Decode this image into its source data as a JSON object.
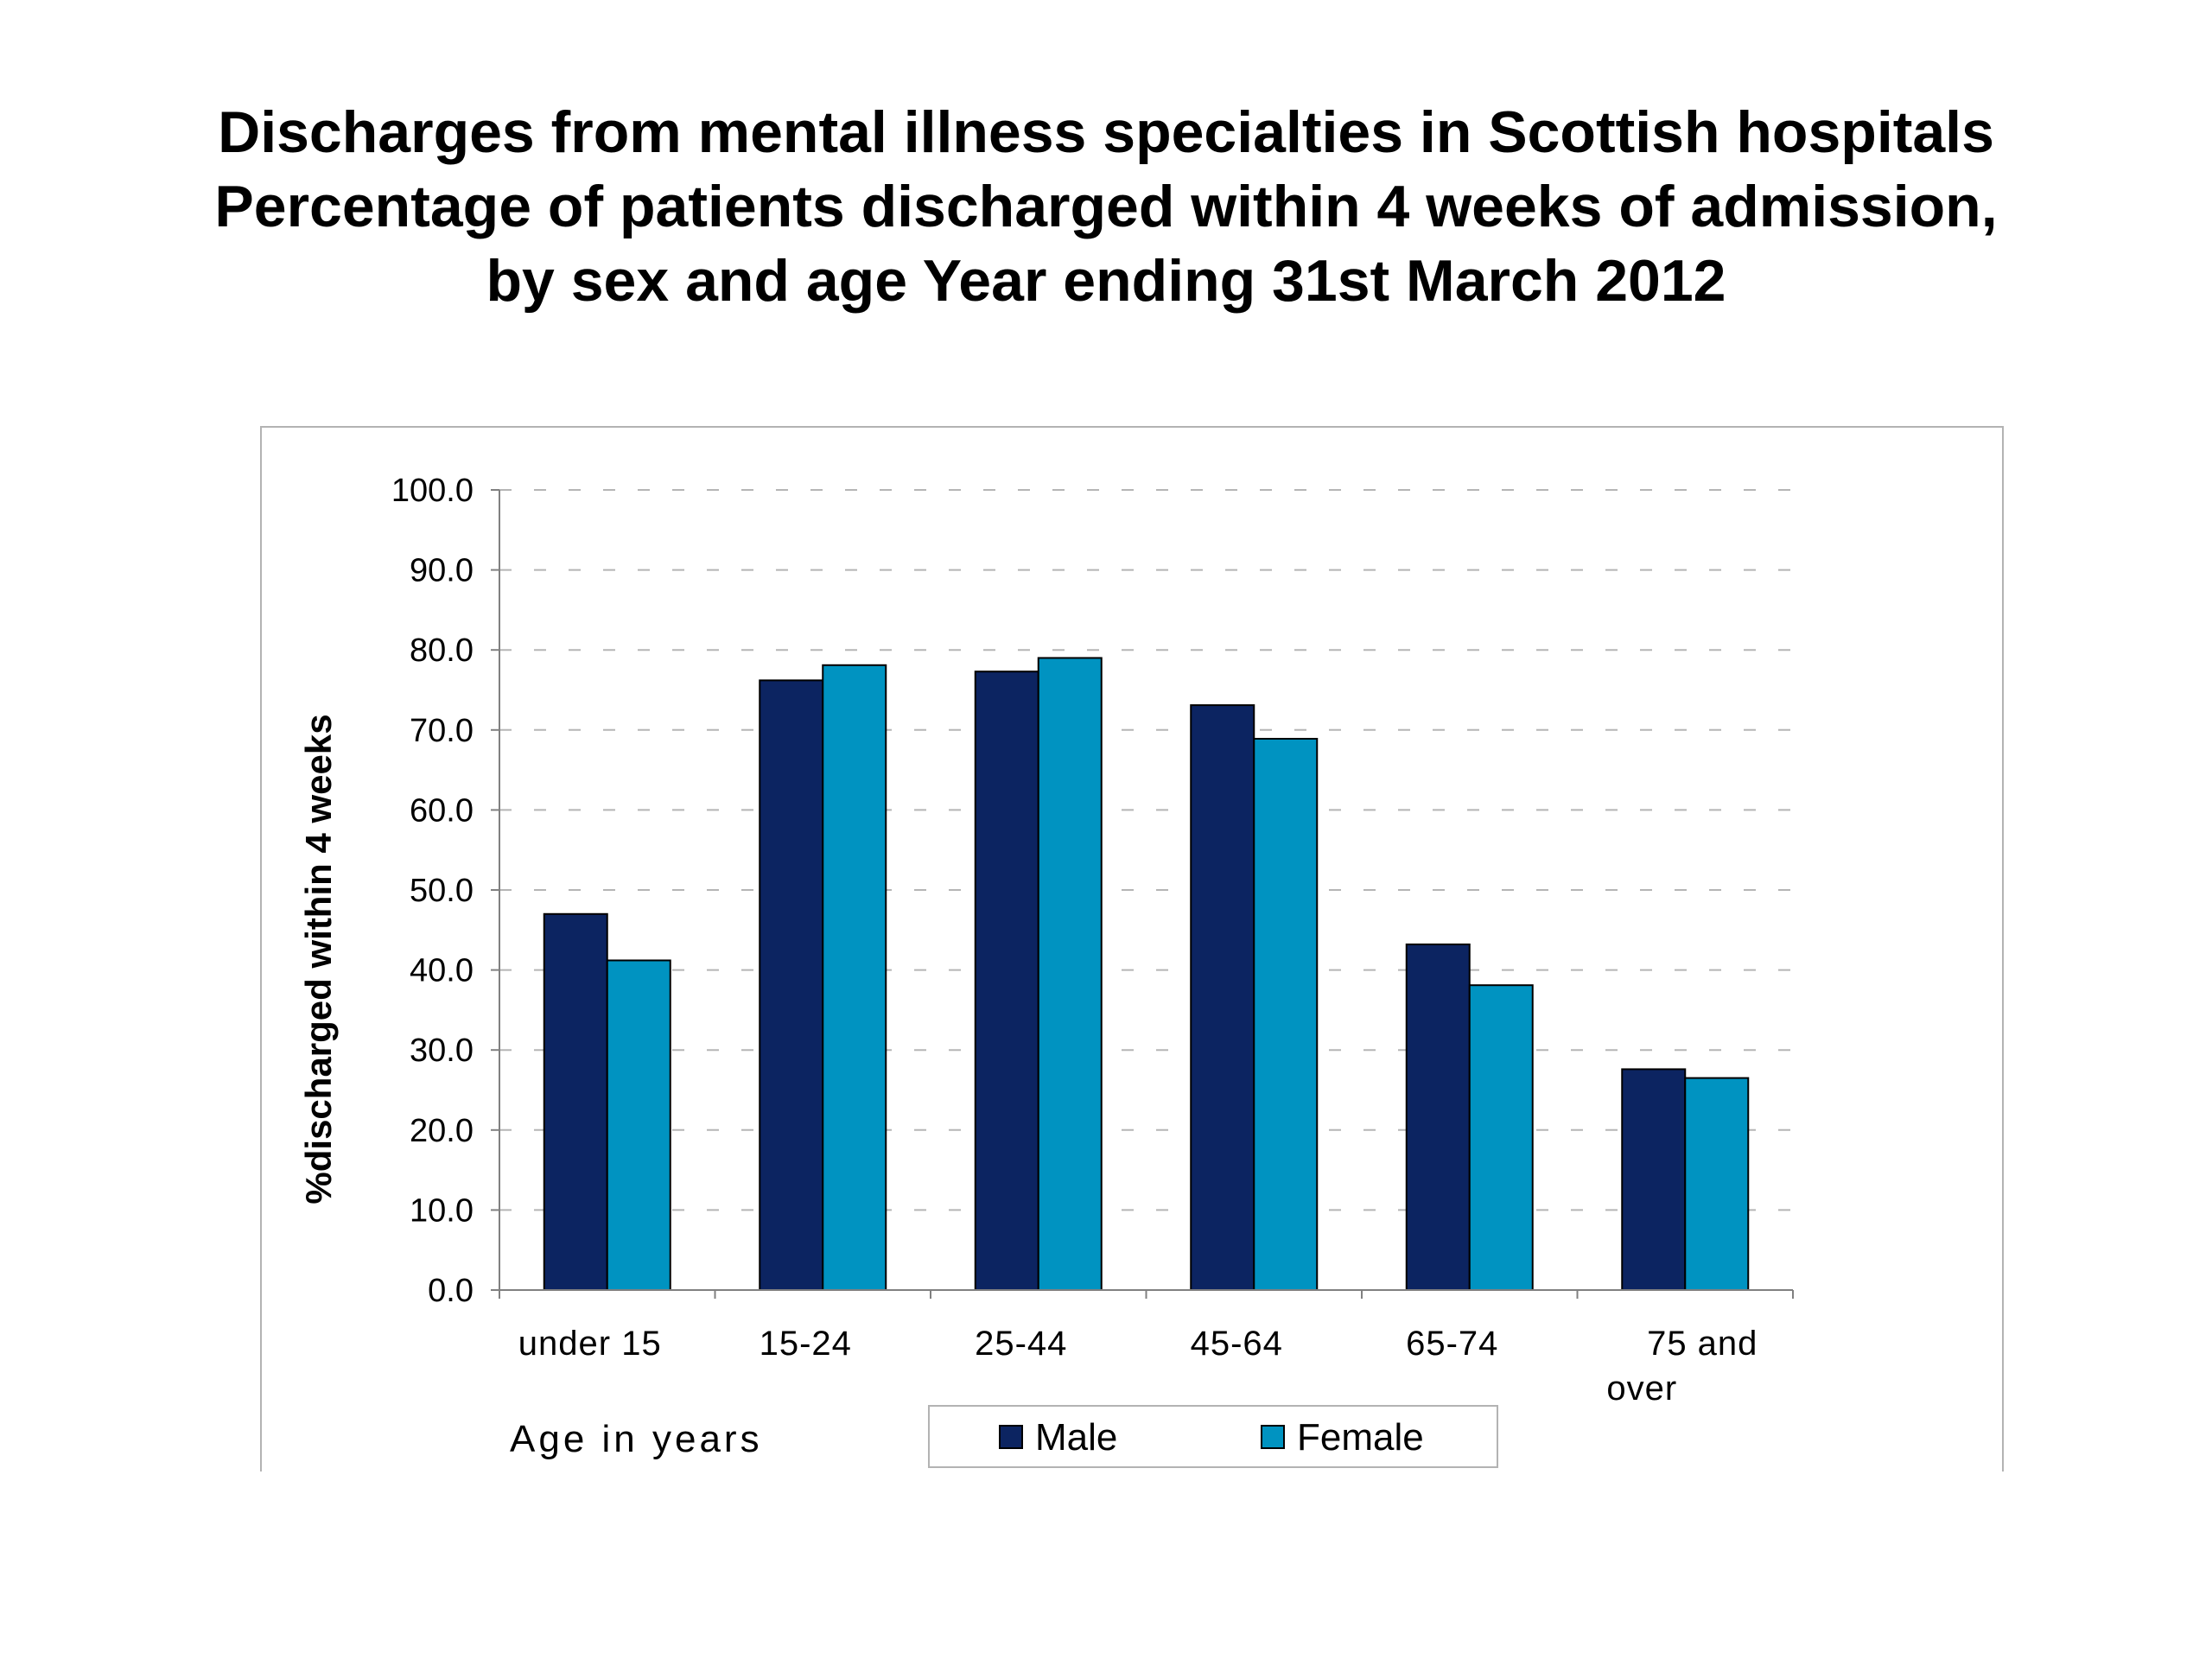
{
  "title_lines": [
    "Discharges from mental illness specialties in Scottish hospitals",
    "Percentage of patients discharged within 4 weeks of admission,",
    "by sex and age Year ending 31st March 2012"
  ],
  "colors": {
    "male": "#0c2461",
    "female": "#0093c1",
    "grid": "#b5b5b5",
    "axis": "#808080"
  },
  "chart_data": {
    "type": "bar",
    "categories": [
      "under 15",
      "15-24",
      "25-44",
      "45-64",
      "65-74",
      "75 and over"
    ],
    "category_lines": [
      [
        "under 15"
      ],
      [
        "15-24"
      ],
      [
        "25-44"
      ],
      [
        "45-64"
      ],
      [
        "65-74"
      ],
      [
        "75 and",
        "over"
      ]
    ],
    "series": [
      {
        "name": "Male",
        "values": [
          47.0,
          76.2,
          77.3,
          73.1,
          43.2,
          27.6
        ]
      },
      {
        "name": "Female",
        "values": [
          41.2,
          78.1,
          79.0,
          68.9,
          38.1,
          26.5
        ]
      }
    ],
    "xlabel": "Age in years",
    "ylabel": "%discharged within 4 weeks",
    "ylim": [
      0,
      100
    ],
    "yticks": [
      "0.0",
      "10.0",
      "20.0",
      "30.0",
      "40.0",
      "50.0",
      "60.0",
      "70.0",
      "80.0",
      "90.0",
      "100.0"
    ],
    "ytick_values": [
      0,
      10,
      20,
      30,
      40,
      50,
      60,
      70,
      80,
      90,
      100
    ],
    "grid": true,
    "legend_position": "bottom"
  }
}
